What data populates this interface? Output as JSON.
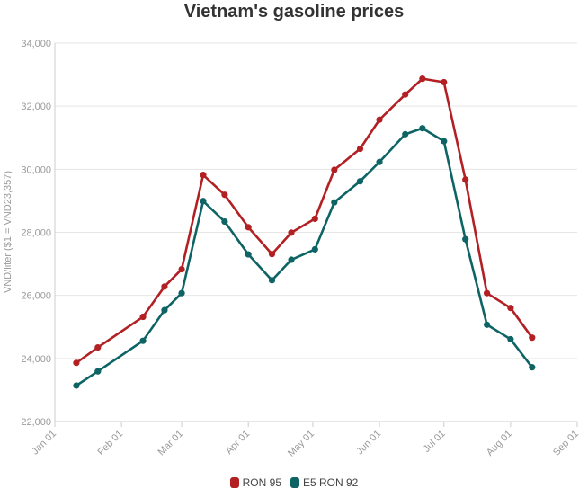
{
  "chart_data": {
    "type": "line",
    "title": "Vietnam's gasoline prices",
    "ylabel": "VND/liter ($1 = VND23,357)",
    "xlabel": "",
    "ylim": [
      22000,
      34000
    ],
    "yticks": [
      22000,
      24000,
      26000,
      28000,
      30000,
      32000,
      34000
    ],
    "ytick_labels": [
      "22,000",
      "24,000",
      "26,000",
      "28,000",
      "30,000",
      "32,000",
      "34,000"
    ],
    "xlim": [
      "2022-01-01",
      "2022-09-01"
    ],
    "xticks": [
      "2022-01-01",
      "2022-02-01",
      "2022-03-01",
      "2022-04-01",
      "2022-05-01",
      "2022-06-01",
      "2022-07-01",
      "2022-08-01",
      "2022-09-01"
    ],
    "xtick_labels": [
      "Jan 01",
      "Feb 01",
      "Mar 01",
      "Apr 01",
      "May 01",
      "Jun 01",
      "Jul 01",
      "Aug 01",
      "Sep 01"
    ],
    "grid": true,
    "legend_position": "bottom-center",
    "series": [
      {
        "name": "RON 95",
        "color": "#b22024",
        "points": [
          [
            "2022-01-11",
            23860
          ],
          [
            "2022-01-21",
            24350
          ],
          [
            "2022-02-11",
            25320
          ],
          [
            "2022-02-21",
            26280
          ],
          [
            "2022-03-01",
            26830
          ],
          [
            "2022-03-11",
            29820
          ],
          [
            "2022-03-21",
            29190
          ],
          [
            "2022-04-01",
            28160
          ],
          [
            "2022-04-12",
            27310
          ],
          [
            "2022-04-21",
            27990
          ],
          [
            "2022-05-02",
            28430
          ],
          [
            "2022-05-11",
            29980
          ],
          [
            "2022-05-23",
            30650
          ],
          [
            "2022-06-01",
            31570
          ],
          [
            "2022-06-13",
            32370
          ],
          [
            "2022-06-21",
            32870
          ],
          [
            "2022-07-01",
            32760
          ],
          [
            "2022-07-11",
            29670
          ],
          [
            "2022-07-21",
            26070
          ],
          [
            "2022-08-01",
            25600
          ],
          [
            "2022-08-11",
            24660
          ]
        ]
      },
      {
        "name": "E5 RON 92",
        "color": "#0e6464",
        "points": [
          [
            "2022-01-11",
            23140
          ],
          [
            "2022-01-21",
            23590
          ],
          [
            "2022-02-11",
            24560
          ],
          [
            "2022-02-21",
            25530
          ],
          [
            "2022-03-01",
            26070
          ],
          [
            "2022-03-11",
            28990
          ],
          [
            "2022-03-21",
            28340
          ],
          [
            "2022-04-01",
            27300
          ],
          [
            "2022-04-12",
            26480
          ],
          [
            "2022-04-21",
            27130
          ],
          [
            "2022-05-02",
            27460
          ],
          [
            "2022-05-11",
            28950
          ],
          [
            "2022-05-23",
            29620
          ],
          [
            "2022-06-01",
            30230
          ],
          [
            "2022-06-13",
            31110
          ],
          [
            "2022-06-21",
            31300
          ],
          [
            "2022-07-01",
            30890
          ],
          [
            "2022-07-11",
            27780
          ],
          [
            "2022-07-21",
            25070
          ],
          [
            "2022-08-01",
            24610
          ],
          [
            "2022-08-11",
            23720
          ]
        ]
      }
    ]
  }
}
